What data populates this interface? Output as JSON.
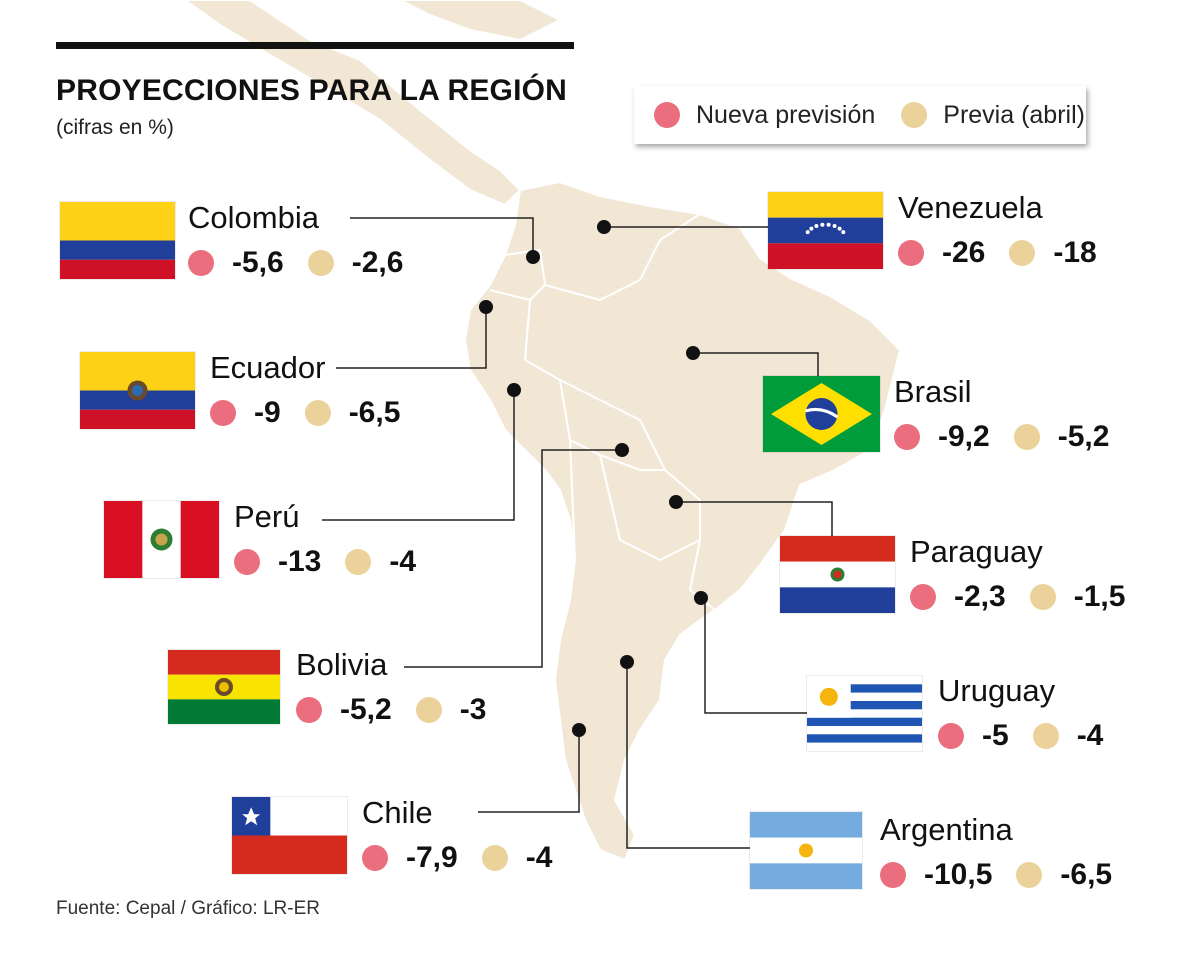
{
  "header": {
    "title": "PROYECCIONES PARA LA REGIÓN",
    "subtitle": "(cifras en %)"
  },
  "legend": {
    "new_label": "Nueva previsión",
    "prev_label": "Previa (abril)"
  },
  "colors": {
    "new": "#ea6e7e",
    "previous": "#ead29a",
    "map_fill": "#f2e7d5",
    "map_border": "#ffffff"
  },
  "chart_data": {
    "type": "table",
    "series": [
      {
        "name": "Nueva previsión",
        "key": "new"
      },
      {
        "name": "Previa (abril)",
        "key": "previous"
      }
    ],
    "countries": [
      {
        "id": "colombia",
        "name": "Colombia",
        "new": "-5,6",
        "previous": "-2,6",
        "new_value": -5.6,
        "previous_value": -2.6,
        "flag": "colombia-flag"
      },
      {
        "id": "ecuador",
        "name": "Ecuador",
        "new": "-9",
        "previous": "-6,5",
        "new_value": -9,
        "previous_value": -6.5,
        "flag": "ecuador-flag"
      },
      {
        "id": "peru",
        "name": "Perú",
        "new": "-13",
        "previous": "-4",
        "new_value": -13,
        "previous_value": -4,
        "flag": "peru-flag"
      },
      {
        "id": "bolivia",
        "name": "Bolivia",
        "new": "-5,2",
        "previous": "-3",
        "new_value": -5.2,
        "previous_value": -3,
        "flag": "bolivia-flag"
      },
      {
        "id": "chile",
        "name": "Chile",
        "new": "-7,9",
        "previous": "-4",
        "new_value": -7.9,
        "previous_value": -4,
        "flag": "chile-flag"
      },
      {
        "id": "venezuela",
        "name": "Venezuela",
        "new": "-26",
        "previous": "-18",
        "new_value": -26,
        "previous_value": -18,
        "flag": "venezuela-flag"
      },
      {
        "id": "brasil",
        "name": "Brasil",
        "new": "-9,2",
        "previous": "-5,2",
        "new_value": -9.2,
        "previous_value": -5.2,
        "flag": "brasil-flag"
      },
      {
        "id": "paraguay",
        "name": "Paraguay",
        "new": "-2,3",
        "previous": "-1,5",
        "new_value": -2.3,
        "previous_value": -1.5,
        "flag": "paraguay-flag"
      },
      {
        "id": "uruguay",
        "name": "Uruguay",
        "new": "-5",
        "previous": "-4",
        "new_value": -5,
        "previous_value": -4,
        "flag": "uruguay-flag"
      },
      {
        "id": "argentina",
        "name": "Argentina",
        "new": "-10,5",
        "previous": "-6,5",
        "new_value": -10.5,
        "previous_value": -6.5,
        "flag": "argentina-flag"
      }
    ]
  },
  "footer": {
    "source": "Fuente: Cepal / Gráfico: LR-ER"
  }
}
